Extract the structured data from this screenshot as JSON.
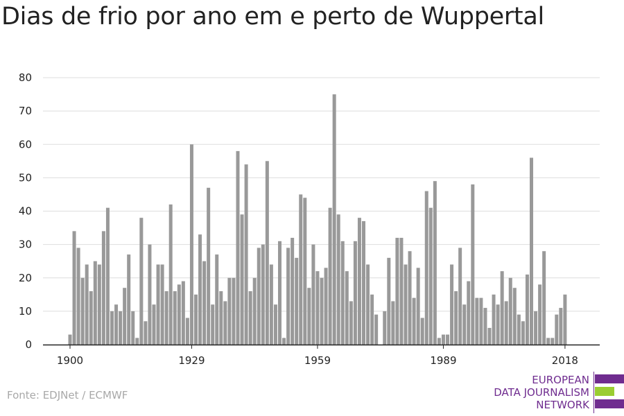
{
  "chart_data": {
    "type": "bar",
    "title": "Dias de frio por ano em e perto de Wuppertal",
    "xlabel": "",
    "ylabel": "",
    "x": [
      1900,
      1901,
      1902,
      1903,
      1904,
      1905,
      1906,
      1907,
      1908,
      1909,
      1910,
      1911,
      1912,
      1913,
      1914,
      1915,
      1916,
      1917,
      1918,
      1919,
      1920,
      1921,
      1922,
      1923,
      1924,
      1925,
      1926,
      1927,
      1928,
      1929,
      1930,
      1931,
      1932,
      1933,
      1934,
      1935,
      1936,
      1937,
      1938,
      1939,
      1940,
      1941,
      1942,
      1943,
      1944,
      1945,
      1946,
      1947,
      1948,
      1949,
      1950,
      1951,
      1952,
      1953,
      1954,
      1955,
      1956,
      1957,
      1958,
      1959,
      1960,
      1961,
      1962,
      1963,
      1964,
      1965,
      1966,
      1967,
      1968,
      1969,
      1970,
      1971,
      1972,
      1973,
      1974,
      1975,
      1976,
      1977,
      1978,
      1979,
      1980,
      1981,
      1982,
      1983,
      1984,
      1985,
      1986,
      1987,
      1988,
      1989,
      1990,
      1991,
      1992,
      1993,
      1994,
      1995,
      1996,
      1997,
      1998,
      1999,
      2000,
      2001,
      2002,
      2003,
      2004,
      2005,
      2006,
      2007,
      2008,
      2009,
      2010,
      2011,
      2012,
      2013,
      2014,
      2015,
      2016,
      2017,
      2018,
      2019
    ],
    "values": [
      3,
      34,
      29,
      20,
      24,
      16,
      25,
      24,
      34,
      41,
      10,
      12,
      10,
      17,
      27,
      10,
      2,
      38,
      7,
      30,
      12,
      24,
      24,
      16,
      42,
      16,
      18,
      19,
      8,
      60,
      15,
      33,
      25,
      47,
      12,
      27,
      16,
      13,
      20,
      20,
      58,
      39,
      54,
      16,
      20,
      29,
      30,
      55,
      24,
      12,
      31,
      2,
      29,
      32,
      26,
      45,
      44,
      17,
      30,
      22,
      20,
      23,
      41,
      75,
      39,
      31,
      22,
      13,
      31,
      38,
      37,
      24,
      15,
      9,
      0,
      10,
      26,
      13,
      32,
      32,
      24,
      28,
      14,
      23,
      8,
      46,
      41,
      49,
      2,
      3,
      3,
      24,
      16,
      29,
      12,
      19,
      48,
      14,
      14,
      11,
      5,
      15,
      12,
      22,
      13,
      20,
      17,
      9,
      7,
      21,
      56,
      10,
      18,
      28,
      2,
      2,
      9,
      11,
      15,
      0
    ],
    "xticks": [
      "1900",
      "1929",
      "1959",
      "1989",
      "2018"
    ],
    "xtick_years": [
      1900,
      1929,
      1959,
      1989,
      2018
    ],
    "yticks": [
      "0",
      "10",
      "20",
      "30",
      "40",
      "50",
      "60",
      "70",
      "80"
    ],
    "ylim": [
      0,
      80
    ],
    "grid": true,
    "bar_color": "#999999",
    "grid_color": "#dddddd",
    "axis_color": "#222222"
  },
  "footer": {
    "source": "Fonte: EDJNet / ECMWF"
  },
  "logo": {
    "line1": "EUROPEAN",
    "line2": "DATA JOURNALISM",
    "line3": "NETWORK",
    "color_primary": "#6f2c8f",
    "color_accent": "#9acd32"
  }
}
